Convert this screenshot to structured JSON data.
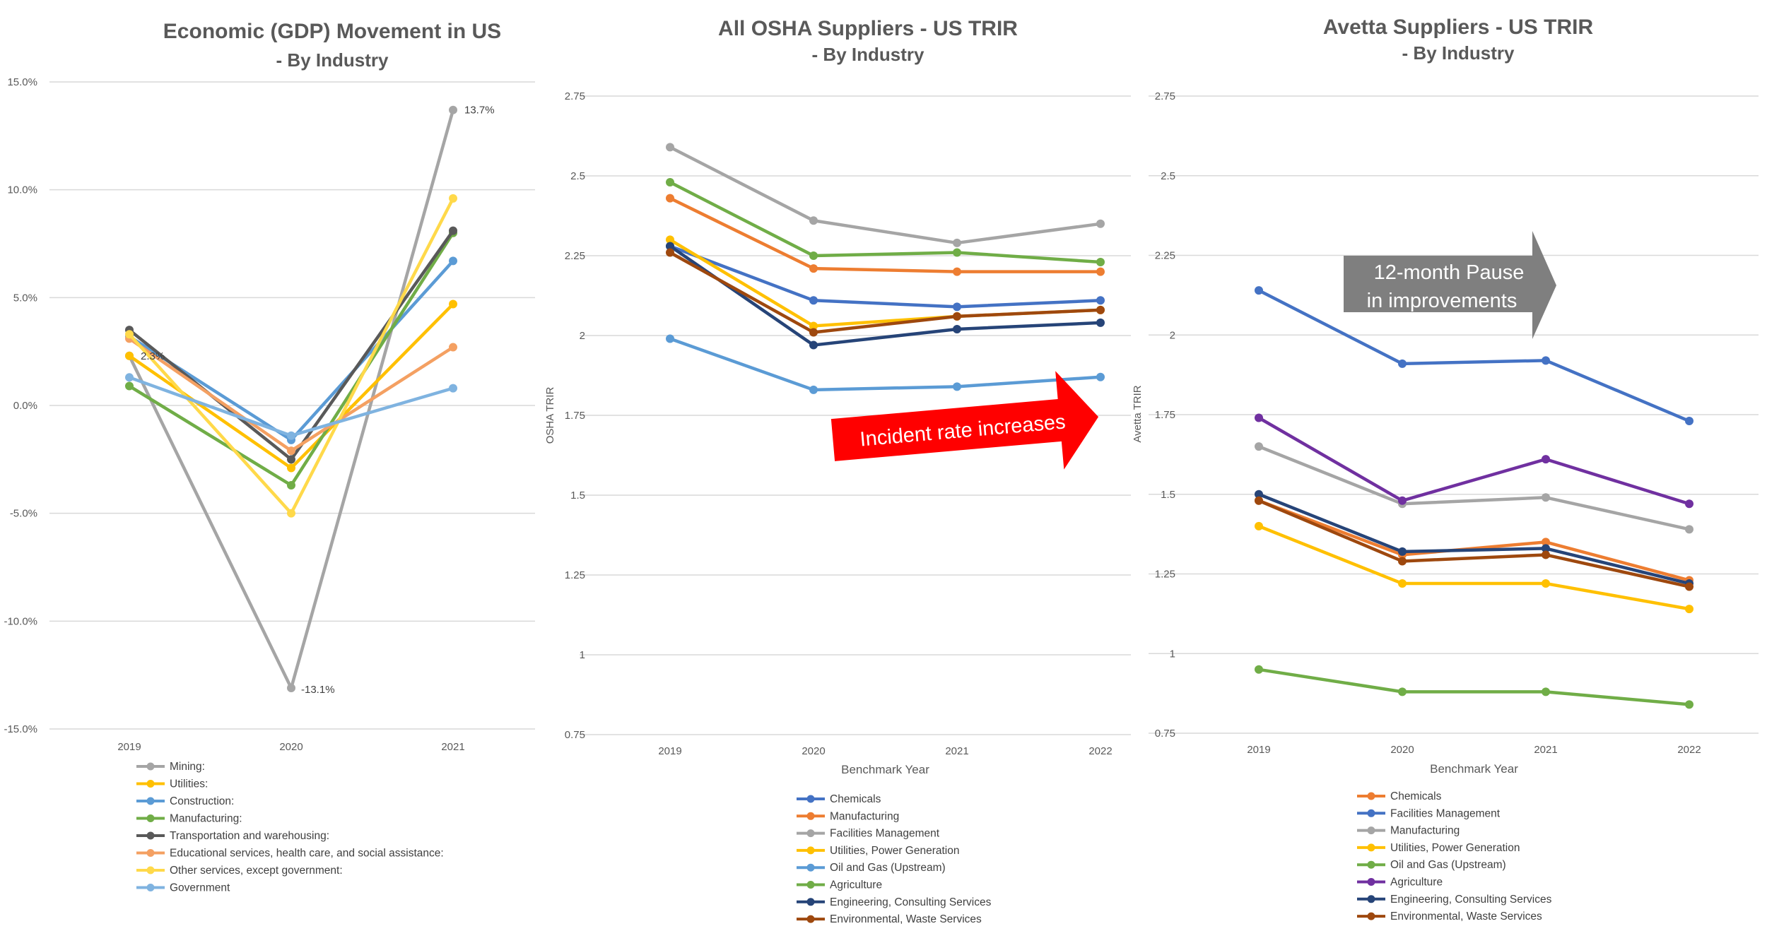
{
  "chart_data": [
    {
      "type": "line",
      "title": "Economic (GDP) Movement in US",
      "subtitle": "- By Industry",
      "categories": [
        "2019",
        "2020",
        "2021"
      ],
      "ylim": [
        -15,
        15
      ],
      "yticks": [
        15,
        10,
        5,
        0,
        -5,
        -10,
        -15
      ],
      "ytick_labels": [
        "15.0%",
        "10.0%",
        "5.0%",
        "0.0%",
        "-5.0%",
        "-10.0%",
        "-15.0%"
      ],
      "grid": true,
      "legend_position": "bottom",
      "series": [
        {
          "name": "Mining:",
          "color": "#a5a5a5",
          "values": [
            2.3,
            -13.1,
            13.7
          ]
        },
        {
          "name": "Utilities:",
          "color": "#ffc000",
          "values": [
            2.3,
            -2.9,
            4.7
          ]
        },
        {
          "name": "Construction:",
          "color": "#5b9bd5",
          "values": [
            3.2,
            -1.6,
            6.7
          ]
        },
        {
          "name": "Manufacturing:",
          "color": "#70ad47",
          "values": [
            0.9,
            -3.7,
            8.0
          ]
        },
        {
          "name": "Transportation and warehousing:",
          "color": "#595959",
          "values": [
            3.5,
            -2.5,
            8.1
          ]
        },
        {
          "name": "Educational services, health care, and social assistance:",
          "color": "#f4a062",
          "values": [
            3.1,
            -2.1,
            2.7
          ]
        },
        {
          "name": "Other services, except government:",
          "color": "#ffd94a",
          "values": [
            3.3,
            -5.0,
            9.6
          ]
        },
        {
          "name": "Government",
          "color": "#7fb3e0",
          "values": [
            1.3,
            -1.4,
            0.8
          ]
        }
      ],
      "annotations": [
        {
          "text": "2.3%",
          "series": 0,
          "index": 0
        },
        {
          "text": "-13.1%",
          "series": 0,
          "index": 1
        },
        {
          "text": "13.7%",
          "series": 0,
          "index": 2
        }
      ]
    },
    {
      "type": "line",
      "title": "All OSHA Suppliers - US TRIR",
      "subtitle": "- By Industry",
      "categories": [
        "2019",
        "2020",
        "2021",
        "2022"
      ],
      "xlabel": "Benchmark Year",
      "ylabel": "OSHA TRIR",
      "ylim": [
        0.75,
        2.75
      ],
      "yticks": [
        2.75,
        2.5,
        2.25,
        2,
        1.75,
        1.5,
        1.25,
        1,
        0.75
      ],
      "ytick_labels": [
        "2.75",
        "2.5",
        "2.25",
        "2",
        "1.75",
        "1.5",
        "1.25",
        "1",
        "0.75"
      ],
      "grid": true,
      "legend_position": "bottom",
      "series": [
        {
          "name": "Chemicals",
          "color": "#4472c4",
          "values": [
            2.28,
            2.11,
            2.09,
            2.11
          ]
        },
        {
          "name": "Manufacturing",
          "color": "#ed7d31",
          "values": [
            2.43,
            2.21,
            2.2,
            2.2
          ]
        },
        {
          "name": "Facilities Management",
          "color": "#a5a5a5",
          "values": [
            2.59,
            2.36,
            2.29,
            2.35
          ]
        },
        {
          "name": "Utilities, Power Generation",
          "color": "#ffc000",
          "values": [
            2.3,
            2.03,
            2.06,
            2.08
          ]
        },
        {
          "name": "Oil and Gas (Upstream)",
          "color": "#5b9bd5",
          "values": [
            1.99,
            1.83,
            1.84,
            1.87
          ]
        },
        {
          "name": "Agriculture",
          "color": "#70ad47",
          "values": [
            2.48,
            2.25,
            2.26,
            2.23
          ]
        },
        {
          "name": "Engineering, Consulting Services",
          "color": "#264478",
          "values": [
            2.28,
            1.97,
            2.02,
            2.04
          ]
        },
        {
          "name": "Environmental, Waste Services",
          "color": "#9e480e",
          "values": [
            2.26,
            2.01,
            2.06,
            2.08
          ]
        }
      ],
      "annotations": [
        {
          "text": "Incident rate increases"
        }
      ]
    },
    {
      "type": "line",
      "title": "Avetta Suppliers - US TRIR",
      "subtitle": "- By Industry",
      "categories": [
        "2019",
        "2020",
        "2021",
        "2022"
      ],
      "xlabel": "Benchmark Year",
      "ylabel": "Avetta TRIR",
      "ylim": [
        0.75,
        2.75
      ],
      "yticks": [
        2.75,
        2.5,
        2.25,
        2,
        1.75,
        1.5,
        1.25,
        1,
        0.75
      ],
      "ytick_labels": [
        "2.75",
        "2.5",
        "2.25",
        "2",
        "1.75",
        "1.5",
        "1.25",
        "1",
        "0.75"
      ],
      "grid": true,
      "legend_position": "bottom",
      "series": [
        {
          "name": "Chemicals",
          "color": "#ed7d31",
          "values": [
            1.48,
            1.31,
            1.35,
            1.23
          ]
        },
        {
          "name": "Facilities Management",
          "color": "#4472c4",
          "values": [
            2.14,
            1.91,
            1.92,
            1.73
          ]
        },
        {
          "name": "Manufacturing",
          "color": "#a5a5a5",
          "values": [
            1.65,
            1.47,
            1.49,
            1.39
          ]
        },
        {
          "name": "Utilities, Power Generation",
          "color": "#ffc000",
          "values": [
            1.4,
            1.22,
            1.22,
            1.14
          ]
        },
        {
          "name": "Oil and Gas (Upstream)",
          "color": "#70ad47",
          "values": [
            0.95,
            0.88,
            0.88,
            0.84
          ]
        },
        {
          "name": "Agriculture",
          "color": "#7030a0",
          "values": [
            1.74,
            1.48,
            1.61,
            1.47
          ]
        },
        {
          "name": "Engineering, Consulting Services",
          "color": "#264478",
          "values": [
            1.5,
            1.32,
            1.33,
            1.22
          ]
        },
        {
          "name": "Environmental, Waste Services",
          "color": "#9e480e",
          "values": [
            1.48,
            1.29,
            1.31,
            1.21
          ]
        }
      ],
      "annotations": [
        {
          "text": "12-month Pause\nin improvements"
        }
      ]
    }
  ]
}
